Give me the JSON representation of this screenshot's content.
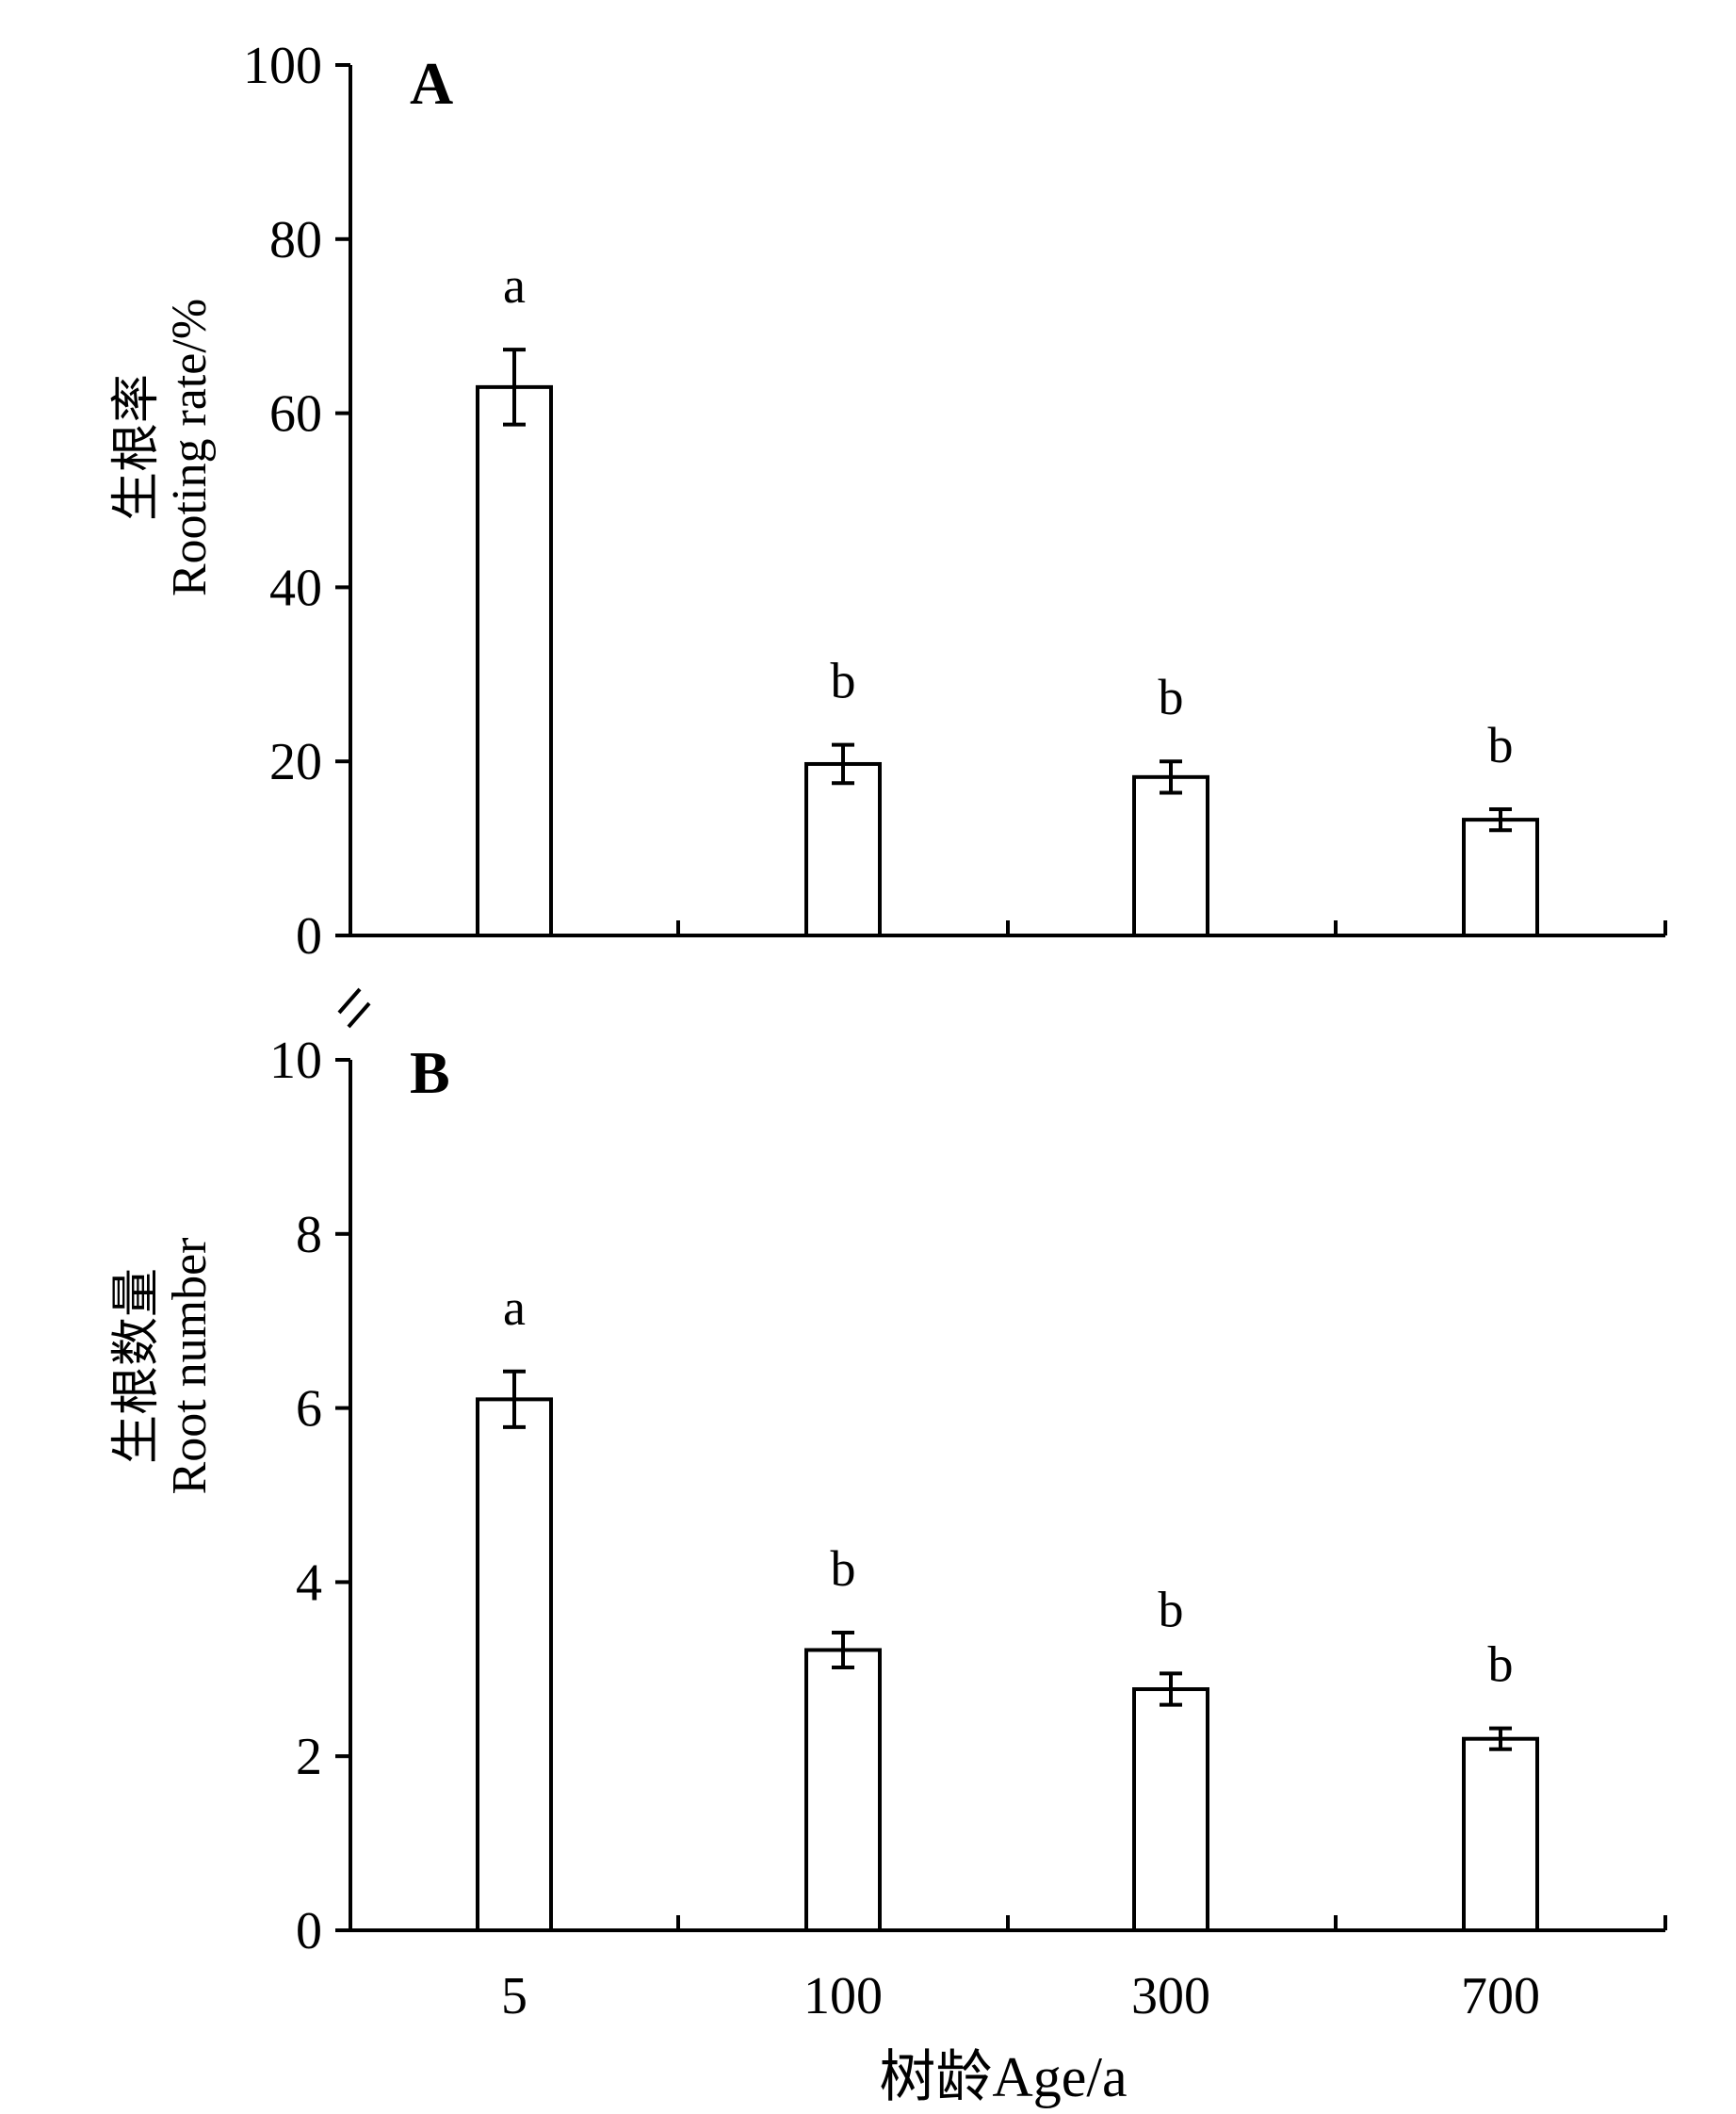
{
  "chart_data": [
    {
      "panel": "A",
      "type": "bar",
      "categories": [
        "5",
        "100",
        "300",
        "700"
      ],
      "values": [
        63,
        19.7,
        18.2,
        13.3
      ],
      "errors": [
        4.3,
        2.2,
        1.8,
        1.2
      ],
      "significance": [
        "a",
        "b",
        "b",
        "b"
      ],
      "ylabel_zh": "生根率",
      "ylabel": "Rooting rate/%",
      "ylim": [
        0,
        100
      ],
      "yticks": [
        "0",
        "20",
        "40",
        "60",
        "80",
        "100"
      ],
      "grid": false
    },
    {
      "panel": "B",
      "type": "bar",
      "categories": [
        "5",
        "100",
        "300",
        "700"
      ],
      "values": [
        6.1,
        3.22,
        2.77,
        2.2
      ],
      "errors": [
        0.32,
        0.2,
        0.18,
        0.12
      ],
      "significance": [
        "a",
        "b",
        "b",
        "b"
      ],
      "ylabel_zh": "生根数量",
      "ylabel": "Root number",
      "ylim": [
        0,
        10
      ],
      "yticks": [
        "0",
        "2",
        "4",
        "6",
        "8",
        "10"
      ],
      "grid": false
    }
  ],
  "xlabel": "树龄Age/a",
  "colors": {
    "bar_fill": "#ffffff",
    "stroke": "#000000"
  }
}
